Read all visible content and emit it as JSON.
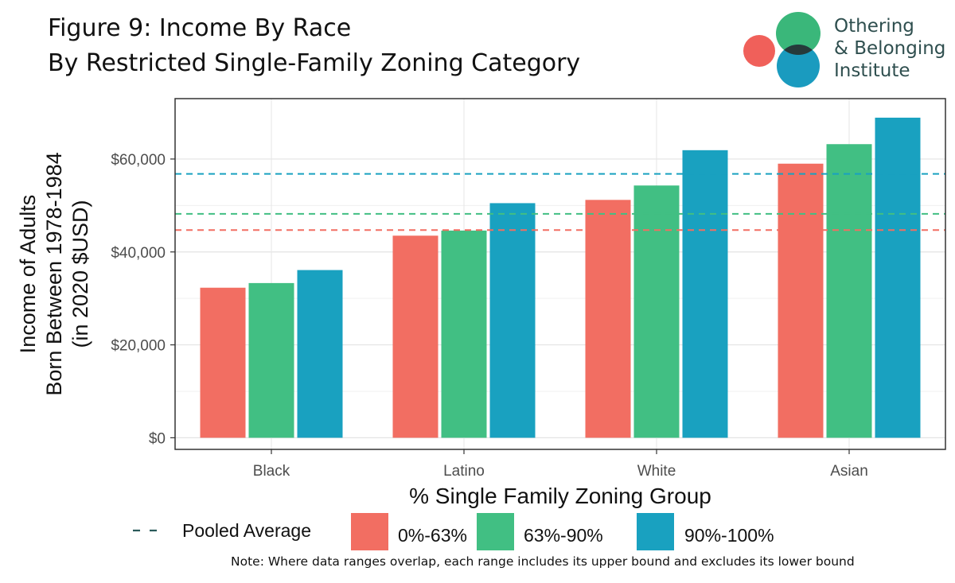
{
  "title": {
    "line1": "Figure 9: Income By Race",
    "line2": "By Restricted Single-Family Zoning Category"
  },
  "logo": {
    "line1": "Othering",
    "line2": "& Belonging",
    "line3": "Institute",
    "colors": {
      "coral": "#f0605a",
      "green": "#3ab77a",
      "blue": "#1a9bbf",
      "overlap": "#263a3a"
    }
  },
  "note": "Note: Where data ranges overlap, each range includes its upper bound and excludes its lower bound",
  "chart_data": {
    "type": "bar",
    "title": "Figure 9: Income By Race",
    "subtitle": "By Restricted Single-Family Zoning Category",
    "xlabel": "% Single Family Zoning Group",
    "ylabel_lines": [
      "Income of Adults",
      "Born Between 1978-1984",
      "(in 2020 $USD)"
    ],
    "categories": [
      "Black",
      "Latino",
      "White",
      "Asian"
    ],
    "series": [
      {
        "name": "0%-63%",
        "color": "#f26e62",
        "values": [
          32300,
          43500,
          51200,
          59000
        ]
      },
      {
        "name": "63%-90%",
        "color": "#41bf83",
        "values": [
          33300,
          44600,
          54300,
          63200
        ]
      },
      {
        "name": "90%-100%",
        "color": "#19a1c0",
        "values": [
          36100,
          50500,
          61900,
          68900
        ]
      }
    ],
    "pooled_average": {
      "name": "Pooled Average",
      "lines": [
        {
          "series": "0%-63%",
          "value": 44700
        },
        {
          "series": "63%-90%",
          "value": 48200
        },
        {
          "series": "90%-100%",
          "value": 56800
        }
      ]
    },
    "ylim": [
      -2500,
      73000
    ],
    "yticks": [
      0,
      20000,
      40000,
      60000
    ],
    "ytick_labels": [
      "$0",
      "$20,000",
      "$40,000",
      "$60,000"
    ],
    "grid": true,
    "legend_position": "bottom"
  }
}
